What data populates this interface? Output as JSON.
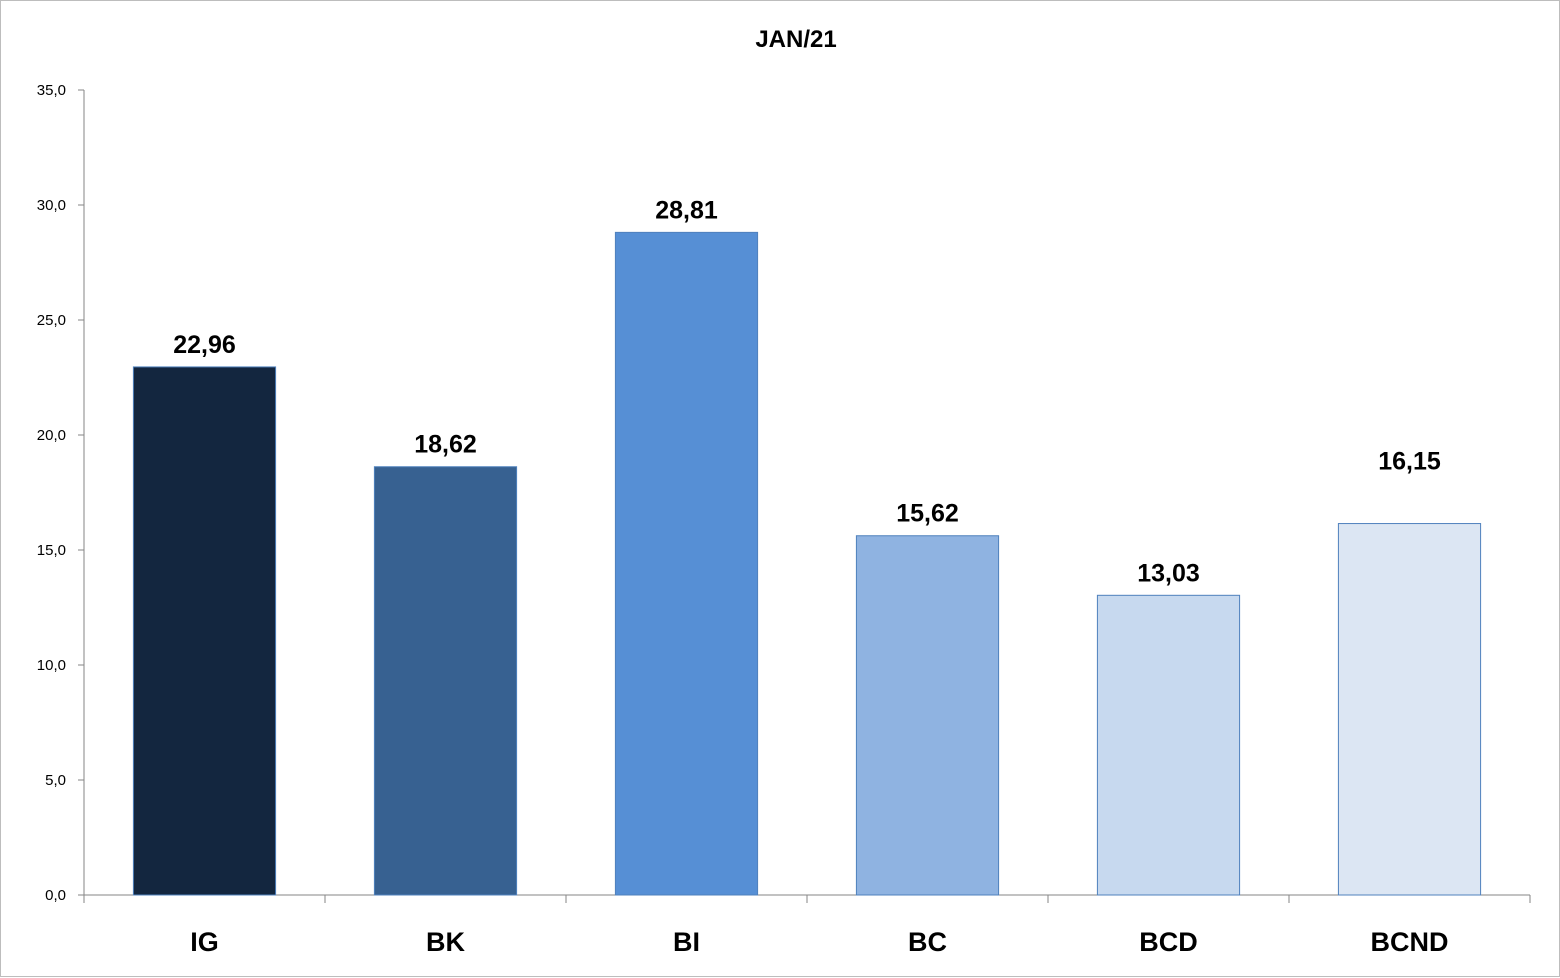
{
  "chart_data": {
    "type": "bar",
    "title": "JAN/21",
    "xlabel": "",
    "ylabel": "",
    "categories": [
      "IG",
      "BK",
      "BI",
      "BC",
      "BCD",
      "BCND"
    ],
    "values": [
      22.96,
      18.62,
      28.81,
      15.62,
      13.03,
      16.15
    ],
    "data_labels": [
      "22,96",
      "18,62",
      "28,81",
      "15,62",
      "13,03",
      "16,15"
    ],
    "ylim": [
      0,
      35
    ],
    "yticks": [
      0,
      5,
      10,
      15,
      20,
      25,
      30,
      35
    ],
    "ytick_labels": [
      "0,0",
      "5,0",
      "10,0",
      "15,0",
      "20,0",
      "25,0",
      "30,0",
      "35,0"
    ],
    "bar_colors": [
      "#13263F",
      "#376191",
      "#568FD5",
      "#8FB3E1",
      "#C7D9EF",
      "#DCE6F3"
    ],
    "bar_edge_color": "#4F81BD",
    "grid": false,
    "legend": "none"
  }
}
